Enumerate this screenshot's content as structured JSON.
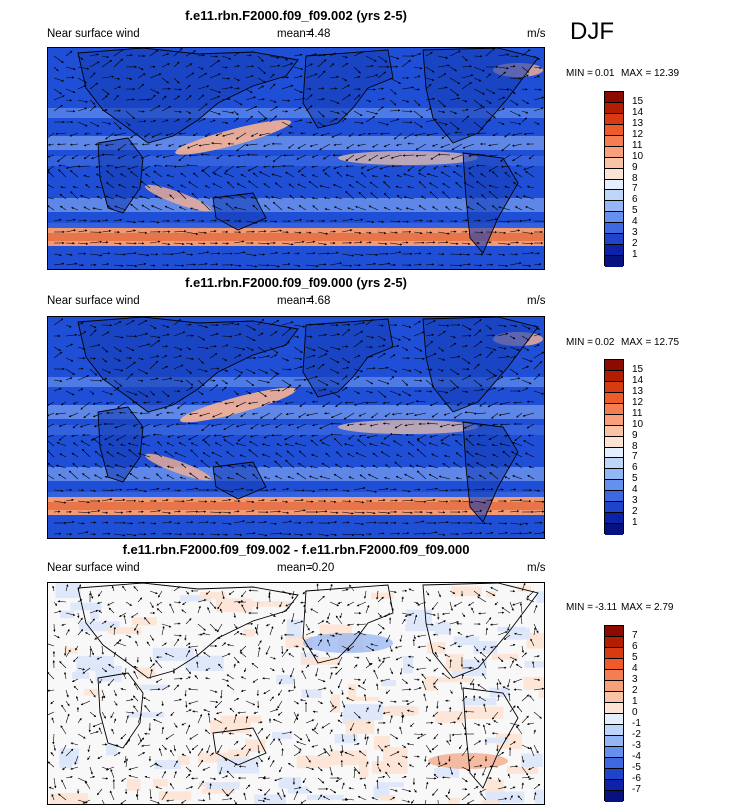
{
  "season": "DJF",
  "panels": [
    {
      "title": "f.e11.rbn.F2000.f09_f09.002 (yrs 2-5)",
      "variable": "Near surface wind",
      "mean_label": "mean=",
      "mean_value": "4.48",
      "units": "m/s",
      "min_label": "MIN =",
      "min_value": "0.01",
      "max_label": "MAX =",
      "max_value": "12.39",
      "colorbar": {
        "labels": [
          "15",
          "14",
          "13",
          "12",
          "11",
          "10",
          "9",
          "8",
          "7",
          "6",
          "5",
          "4",
          "3",
          "2",
          "1"
        ],
        "colors": [
          "#8c0a00",
          "#b31e00",
          "#d83b12",
          "#ee5a2a",
          "#f47d52",
          "#f8a07c",
          "#fbc3a6",
          "#fde3d3",
          "#e5eefc",
          "#bfd6fb",
          "#93b7f6",
          "#6690ee",
          "#3e68e2",
          "#2043cc",
          "#0d22a8",
          "#051280"
        ]
      }
    },
    {
      "title": "f.e11.rbn.F2000.f09_f09.000 (yrs 2-5)",
      "variable": "Near surface wind",
      "mean_label": "mean=",
      "mean_value": "4.68",
      "units": "m/s",
      "min_label": "MIN =",
      "min_value": "0.02",
      "max_label": "MAX =",
      "max_value": "12.75",
      "colorbar": {
        "labels": [
          "15",
          "14",
          "13",
          "12",
          "11",
          "10",
          "9",
          "8",
          "7",
          "6",
          "5",
          "4",
          "3",
          "2",
          "1"
        ],
        "colors": [
          "#8c0a00",
          "#b31e00",
          "#d83b12",
          "#ee5a2a",
          "#f47d52",
          "#f8a07c",
          "#fbc3a6",
          "#fde3d3",
          "#e5eefc",
          "#bfd6fb",
          "#93b7f6",
          "#6690ee",
          "#3e68e2",
          "#2043cc",
          "#0d22a8",
          "#051280"
        ]
      }
    },
    {
      "title": "f.e11.rbn.F2000.f09_f09.002 - f.e11.rbn.F2000.f09_f09.000",
      "variable": "Near surface wind",
      "mean_label": "mean=",
      "mean_value": "-0.20",
      "units": "m/s",
      "min_label": "MIN =",
      "min_value": "-3.11",
      "max_label": "MAX =",
      "max_value": "2.79",
      "colorbar": {
        "labels": [
          "7",
          "6",
          "5",
          "4",
          "3",
          "2",
          "1",
          "0",
          "-1",
          "-2",
          "-3",
          "-4",
          "-5",
          "-6",
          "-7"
        ],
        "colors": [
          "#8c0a00",
          "#b31e00",
          "#d83b12",
          "#ee5a2a",
          "#f47d52",
          "#f8a07c",
          "#fbc3a6",
          "#fde3d3",
          "#e5eefc",
          "#bfd6fb",
          "#93b7f6",
          "#6690ee",
          "#3e68e2",
          "#2043cc",
          "#0d22a8",
          "#051280"
        ]
      }
    }
  ]
}
